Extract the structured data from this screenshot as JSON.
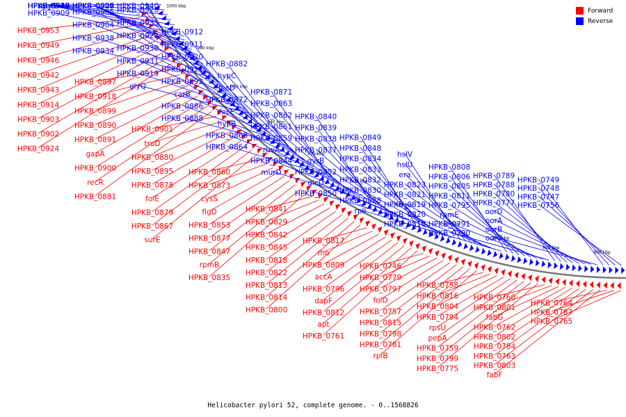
{
  "colors": {
    "forward": "#ff0000",
    "reverse": "#0000ff",
    "backbone": "#7a7a7a",
    "label_forward": "#cc0000",
    "label_reverse": "#0000cc"
  },
  "legend": [
    {
      "label": "Forward",
      "color": "#ff0000"
    },
    {
      "label": "Reverse",
      "color": "#0000ff"
    }
  ],
  "caption": "Helicobacter pylori 52, complete genome. - 0..1568826",
  "scale_ticks": [
    "1000 kbp",
    "980 kbp",
    "960 kbp",
    "940 kbp",
    "920 kbp",
    "900 kbp",
    "880 kbp",
    "860 kbp",
    "840 kbp",
    "820 kbp",
    "800 kbp"
  ],
  "forward_genes": [
    "HPKB_0953",
    "HPKB_0949",
    "HPKB_0946",
    "HPKB_0942",
    "HPKB_0943",
    "HPKB_0914",
    "HPKB_0903",
    "HPKB_0902",
    "HPKB_0924",
    "HPKB_0897",
    "HPKB_0918",
    "HPKB_0899",
    "HPKB_0890",
    "HPKB_0891",
    "gapA",
    "HPKB_0900",
    "recR",
    "HPKB_0881",
    "HPKB_0901",
    "truD",
    "HPKB_0880",
    "HPKB_0895",
    "HPKB_0878",
    "folE",
    "HPKB_0879",
    "HPKB_0867",
    "surE",
    "HPKB_0860",
    "HPKB_0873",
    "cysS",
    "flgD",
    "HPKB_0853",
    "HPKB_0877",
    "HPKB_0847",
    "rpmB",
    "HPKB_0835",
    "HPKB_0841",
    "HPKB_0829",
    "HPKB_0842",
    "HPKB_0845",
    "HPKB_0818",
    "HPKB_0822",
    "HPKB_0813",
    "HPKB_0814",
    "HPKB_0800",
    "HPKB_0817",
    "rho",
    "HPKB_0809",
    "accA",
    "HPKB_0796",
    "dapF",
    "HPKB_0812",
    "apt",
    "HPKB_0761",
    "HPKB_0746",
    "HPKB_0779",
    "HPKB_0797",
    "folD",
    "HPKB_0757",
    "HPKB_0815",
    "HPKB_0798",
    "HPKB_0781",
    "rpiB",
    "HPKB_0758",
    "HPKB_0816",
    "HPKB_0804",
    "HPKB_0794",
    "rpsU",
    "pepA",
    "HPKB_0759",
    "HPKB_0799",
    "HPKB_0775",
    "HPKB_0760",
    "HPKB_0801",
    "fabG",
    "HPKB_0762",
    "HPKB_0802",
    "HPKB_0784",
    "HPKB_0763",
    "HPKB_0803",
    "fabF",
    "HPKB_0764",
    "HPKB_0787",
    "HPKB_0765"
  ],
  "reverse_genes": [
    "metG",
    "HPKB_0945",
    "glyS",
    "HPKB_0939",
    "HPKB_0929",
    "HPKB_0910",
    "HPKB_0927",
    "HPKB_0909",
    "HPKB_0925",
    "HPKB_0908",
    "HPKB_0907",
    "HPKB_0906",
    "HPKB_0905",
    "HPKB_0904",
    "HPKB_0938",
    "HPKB_0934",
    "HPKB_0940",
    "HPKB_0928",
    "HPKB_0935",
    "HPKB_0922",
    "HPKB_0930",
    "HPKB_0931",
    "HPKB_0919",
    "glyQ",
    "HPKB_0912",
    "HPKB_0911",
    "HPKB_0920",
    "HPKB_0921",
    "HPKB_0892",
    "carB",
    "HPKB_0886",
    "HPKB_0888",
    "HPKB_0882",
    "hypC",
    "fecD",
    "HPKB_0872",
    "fecE",
    "hypB",
    "HPKB_0868",
    "HPKB_0864",
    "HPKB_0871",
    "HPKB_0863",
    "HPKB_0862",
    "HPKB_0861",
    "HPKB_0859",
    "ruvA",
    "HPKB_0844",
    "murD",
    "HPKB_0840",
    "HPKB_0839",
    "HPKB_0838",
    "HPKB_0837",
    "gyrB",
    "HPKB_0852",
    "glcD",
    "HPKB_0850",
    "HPKB_0849",
    "HPKB_0848",
    "HPKB_0834",
    "HPKB_0833",
    "HPKB_0832",
    "HPKB_0830",
    "HPKB_0828",
    "rplI",
    "hslV",
    "hslU",
    "era",
    "HPKB_0823",
    "HPKB_0821",
    "HPKB_0819",
    "HPKB_0820",
    "HPKB_0810",
    "HPKB_0808",
    "HPKB_0806",
    "HPKB_0805",
    "HPKB_0811",
    "HPKB_0795",
    "rpmE",
    "HPKB_0791",
    "HPKB_0790",
    "HPKB_0789",
    "HPKB_0788",
    "HPKB_0780",
    "HPKB_0777",
    "oorD",
    "oorA",
    "oorB",
    "oorC",
    "HPKB_0749",
    "HPKB_0748",
    "HPKB_0747",
    "HPKB_0756"
  ]
}
